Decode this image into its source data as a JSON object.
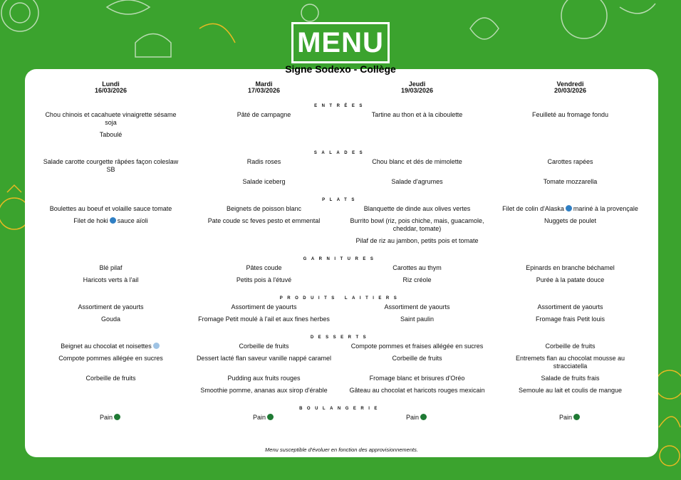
{
  "header": {
    "logo": "MENU",
    "subtitle": "Signe Sodexo - Collège"
  },
  "colors": {
    "background": "#3ba32e",
    "card": "#ffffff",
    "fish_icon": "#2f7fc4",
    "frozen_icon": "#9fc3e4",
    "bread_icon": "#1f7a34"
  },
  "days": [
    {
      "name": "Lundi",
      "date": "16/03/2026"
    },
    {
      "name": "Mardi",
      "date": "17/03/2026"
    },
    {
      "name": "Jeudi",
      "date": "19/03/2026"
    },
    {
      "name": "Vendredi",
      "date": "20/03/2026"
    }
  ],
  "sections": [
    {
      "title": "ENTRÉES",
      "rows": [
        [
          {
            "t": "Chou chinois et cacahuete vinaigrette sésame soja"
          },
          {
            "t": "Pâté de campagne"
          },
          {
            "t": "Tartine au thon et à la ciboulette"
          },
          {
            "t": "Feuilleté au fromage fondu"
          }
        ],
        [
          {
            "t": "Taboulé"
          },
          {
            "t": ""
          },
          {
            "t": ""
          },
          {
            "t": ""
          }
        ]
      ]
    },
    {
      "title": "SALADES",
      "rows": [
        [
          {
            "t": "Salade carotte courgette râpées façon coleslaw SB"
          },
          {
            "t": "Radis roses"
          },
          {
            "t": "Chou blanc et dés de mimolette"
          },
          {
            "t": "Carottes rapées"
          }
        ],
        [
          {
            "t": ""
          },
          {
            "t": "Salade iceberg"
          },
          {
            "t": "Salade d'agrumes"
          },
          {
            "t": "Tomate mozzarella"
          }
        ]
      ]
    },
    {
      "title": "PLATS",
      "rows": [
        [
          {
            "t": "Boulettes au boeuf et volaille sauce tomate"
          },
          {
            "t": "Beignets de poisson blanc"
          },
          {
            "t": "Blanquette de dinde aux olives vertes"
          },
          {
            "t": "Filet de colin d'Alaska",
            "i": "fish",
            "t2": "mariné à la provençale"
          }
        ],
        [
          {
            "t": "Filet de hoki",
            "i": "fish",
            "t2": "sauce aïoli"
          },
          {
            "t": "Pate coude sc feves pesto et emmental"
          },
          {
            "t": "Burrito bowl (riz, pois chiche, mais, guacamole, cheddar, tomate)"
          },
          {
            "t": "Nuggets de poulet"
          }
        ],
        [
          {
            "t": ""
          },
          {
            "t": ""
          },
          {
            "t": "Pilaf de riz au jambon, petits pois et tomate"
          },
          {
            "t": ""
          }
        ]
      ]
    },
    {
      "title": "GARNITURES",
      "rows": [
        [
          {
            "t": "Blé pilaf"
          },
          {
            "t": "Pâtes coude"
          },
          {
            "t": "Carottes au thym"
          },
          {
            "t": "Epinards en branche béchamel"
          }
        ],
        [
          {
            "t": "Haricots verts à l'ail"
          },
          {
            "t": "Petits pois à l'étuvé"
          },
          {
            "t": "Riz créole"
          },
          {
            "t": "Purée à la patate douce"
          }
        ]
      ]
    },
    {
      "title": "PRODUITS LAITIERS",
      "rows": [
        [
          {
            "t": "Assortiment de yaourts"
          },
          {
            "t": "Assortiment de yaourts"
          },
          {
            "t": "Assortiment de yaourts"
          },
          {
            "t": "Assortiment de yaourts"
          }
        ],
        [
          {
            "t": "Gouda"
          },
          {
            "t": "Fromage Petit moulé à l'ail et aux fines herbes"
          },
          {
            "t": "Saint paulin"
          },
          {
            "t": "Fromage frais Petit louis"
          }
        ]
      ]
    },
    {
      "title": "DESSERTS",
      "rows": [
        [
          {
            "t": "Beignet au chocolat et noisettes",
            "i": "frozen"
          },
          {
            "t": "Corbeille de fruits"
          },
          {
            "t": "Compote pommes et fraises allégée en sucres"
          },
          {
            "t": "Corbeille de fruits"
          }
        ],
        [
          {
            "t": "Compote pommes allégée en sucres"
          },
          {
            "t": "Dessert lacté flan saveur vanille nappé caramel"
          },
          {
            "t": "Corbeille de fruits"
          },
          {
            "t": "Entremets flan au chocolat mousse au stracciatella"
          }
        ],
        [
          {
            "t": "Corbeille de fruits"
          },
          {
            "t": "Pudding aux fruits rouges"
          },
          {
            "t": "Fromage blanc et brisures d'Oréo"
          },
          {
            "t": "Salade de fruits frais"
          }
        ],
        [
          {
            "t": ""
          },
          {
            "t": "Smoothie pomme, ananas aux sirop d'érable"
          },
          {
            "t": "Gâteau au chocolat et haricots rouges mexicain"
          },
          {
            "t": "Semoule au lait et coulis de mangue"
          }
        ]
      ]
    },
    {
      "title": "BOULANGERIE",
      "rows": [
        [
          {
            "t": "Pain",
            "i": "bread"
          },
          {
            "t": "Pain",
            "i": "bread"
          },
          {
            "t": "Pain",
            "i": "bread"
          },
          {
            "t": "Pain",
            "i": "bread"
          }
        ]
      ]
    }
  ],
  "footer": "Menu susceptible d'évoluer en fonction des approvisionnements."
}
